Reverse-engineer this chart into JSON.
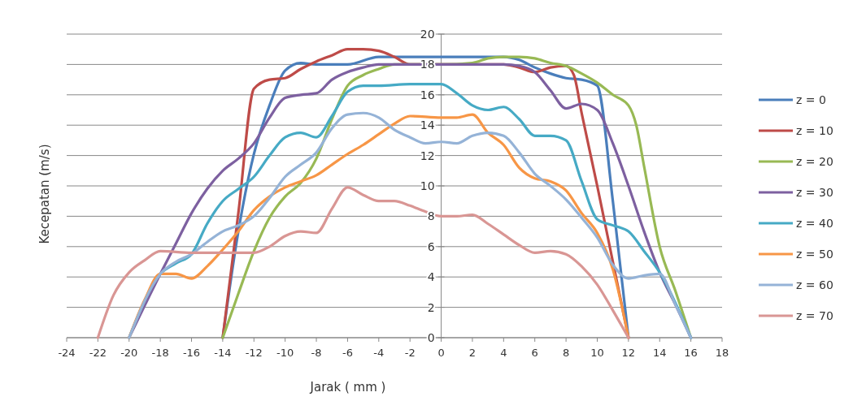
{
  "chart_data": {
    "type": "line",
    "xlabel": "Jarak ( mm )",
    "ylabel": "Kecepatan (m/s)",
    "xlim": [
      -24,
      18
    ],
    "xticks": [
      -24,
      -22,
      -20,
      -18,
      -16,
      -14,
      -12,
      -10,
      -8,
      -6,
      -4,
      -2,
      0,
      2,
      4,
      6,
      8,
      10,
      12,
      14,
      16,
      18
    ],
    "ylim": [
      0,
      20
    ],
    "yticks": [
      0,
      2,
      4,
      6,
      8,
      10,
      12,
      14,
      16,
      18,
      20
    ],
    "grid": "y",
    "legend": "right",
    "marker": "none",
    "line_style": "solid",
    "series": [
      {
        "name": "z = 0",
        "color": "#4a7ebb",
        "x": [
          -14,
          -13,
          -12,
          -11,
          -10,
          -9,
          -8,
          -7,
          -6,
          -4,
          -2,
          0,
          2,
          4,
          5,
          6,
          7,
          8,
          9,
          10,
          11,
          12
        ],
        "values": [
          0,
          7,
          12.1,
          15.3,
          17.6,
          18.1,
          18,
          18,
          18,
          18.5,
          18.5,
          18.5,
          18.5,
          18.5,
          18.3,
          17.8,
          17.4,
          17.1,
          17,
          16.6,
          9,
          0
        ]
      },
      {
        "name": "z = 10",
        "color": "#be4b48",
        "x": [
          -14,
          -13,
          -12,
          -11,
          -10,
          -9,
          -8,
          -7,
          -6,
          -5,
          -4,
          -3,
          -2,
          0,
          2,
          4,
          5,
          6,
          7,
          8,
          8.5,
          9,
          10,
          11,
          12
        ],
        "values": [
          0,
          8.2,
          16.4,
          17,
          17.1,
          17.7,
          18.2,
          18.6,
          19,
          19,
          18.9,
          18.5,
          18,
          18,
          18,
          18,
          17.8,
          17.5,
          17.8,
          17.9,
          17.3,
          14.8,
          10,
          5,
          0
        ]
      },
      {
        "name": "z = 20",
        "color": "#98b954",
        "x": [
          -14,
          -13,
          -12,
          -11,
          -10,
          -9,
          -8,
          -7,
          -6,
          -5,
          -4,
          -3,
          -2,
          0,
          2,
          3,
          4,
          5,
          6,
          7,
          8,
          9,
          10,
          11,
          12,
          12.5,
          13,
          14,
          15,
          16
        ],
        "values": [
          0,
          2.9,
          5.7,
          7.9,
          9.3,
          10.2,
          11.8,
          14.4,
          16.6,
          17.3,
          17.7,
          18,
          18,
          18,
          18.1,
          18.4,
          18.5,
          18.5,
          18.4,
          18.1,
          17.9,
          17.4,
          16.8,
          16,
          15.3,
          14,
          11.3,
          6,
          3.1,
          0
        ]
      },
      {
        "name": "z = 30",
        "color": "#7d60a0",
        "x": [
          -20,
          -18,
          -17,
          -16,
          -15,
          -14,
          -13,
          -12,
          -11,
          -10,
          -9,
          -8,
          -7,
          -6,
          -5,
          -4,
          0,
          4,
          5,
          6,
          7,
          8,
          9,
          10,
          11,
          12,
          13,
          14,
          15,
          16
        ],
        "values": [
          0,
          4.2,
          6.2,
          8.2,
          9.8,
          11,
          11.8,
          12.8,
          14.5,
          15.8,
          16,
          16.1,
          17,
          17.5,
          17.8,
          18,
          18,
          18,
          17.9,
          17.5,
          16.3,
          15.1,
          15.4,
          15,
          12.8,
          10,
          7,
          4.3,
          2.2,
          0
        ]
      },
      {
        "name": "z = 40",
        "color": "#46aac5",
        "x": [
          -20,
          -18,
          -17,
          -16,
          -15,
          -14,
          -13,
          -12,
          -11,
          -10,
          -9,
          -8,
          -7,
          -6,
          -5,
          -4,
          -2,
          0,
          1,
          2,
          3,
          4,
          5,
          6,
          7,
          8,
          9,
          10,
          11,
          12,
          13,
          14,
          16
        ],
        "values": [
          0,
          4.2,
          4.9,
          5.5,
          7.5,
          9,
          9.8,
          10.6,
          12,
          13.2,
          13.5,
          13.2,
          14.6,
          16.2,
          16.6,
          16.6,
          16.7,
          16.7,
          16.1,
          15.3,
          15,
          15.2,
          14.4,
          13.3,
          13.3,
          13,
          10.3,
          7.8,
          7.4,
          7,
          5.7,
          4.3,
          0
        ]
      },
      {
        "name": "z = 50",
        "color": "#f79646",
        "x": [
          -20,
          -19,
          -18,
          -17,
          -16,
          -15,
          -14,
          -13,
          -12,
          -11,
          -10,
          -9,
          -8,
          -7,
          -6,
          -5,
          -4,
          -3,
          -2,
          0,
          1,
          2,
          3,
          4,
          5,
          6,
          7,
          8,
          9,
          10,
          11,
          12
        ],
        "values": [
          0,
          2.5,
          4.2,
          4.2,
          3.9,
          4.7,
          5.8,
          7,
          8.4,
          9.3,
          9.9,
          10.3,
          10.7,
          11.4,
          12.1,
          12.7,
          13.4,
          14.1,
          14.6,
          14.5,
          14.5,
          14.7,
          13.5,
          12.7,
          11.2,
          10.5,
          10.3,
          9.7,
          8.2,
          6.9,
          4.5,
          0
        ]
      },
      {
        "name": "z = 60",
        "color": "#95b3d7",
        "x": [
          -20,
          -18,
          -17,
          -16,
          -15,
          -14,
          -13,
          -12,
          -11,
          -10,
          -9,
          -8,
          -7,
          -6,
          -5,
          -4,
          -3,
          -2,
          -1,
          0,
          1,
          2,
          3,
          4,
          5,
          6,
          7,
          8,
          9,
          10,
          11,
          12,
          13,
          14,
          15,
          16
        ],
        "values": [
          0,
          4.2,
          5,
          5.5,
          6.3,
          7,
          7.4,
          8,
          9.2,
          10.6,
          11.4,
          12.2,
          13.8,
          14.7,
          14.8,
          14.5,
          13.7,
          13.2,
          12.8,
          12.9,
          12.8,
          13.3,
          13.5,
          13.3,
          12.2,
          10.8,
          10,
          9.1,
          7.9,
          6.6,
          4.8,
          3.9,
          4.1,
          4.2,
          2.2,
          0
        ]
      },
      {
        "name": "z = 70",
        "color": "#d99694",
        "x": [
          -22,
          -21,
          -20,
          -19,
          -18,
          -16,
          -12,
          -11,
          -10,
          -9,
          -8,
          -7,
          -6,
          -5,
          -4,
          -3,
          -2,
          -1,
          0,
          1,
          2,
          3,
          4,
          5,
          6,
          7,
          8,
          9,
          10,
          11,
          12
        ],
        "values": [
          0,
          2.8,
          4.3,
          5.1,
          5.7,
          5.6,
          5.6,
          6,
          6.7,
          7,
          6.9,
          8.5,
          9.9,
          9.4,
          9,
          9,
          8.7,
          8.3,
          8,
          8,
          8.1,
          7.5,
          6.8,
          6.1,
          5.6,
          5.7,
          5.5,
          4.7,
          3.5,
          1.8,
          0
        ]
      }
    ]
  }
}
